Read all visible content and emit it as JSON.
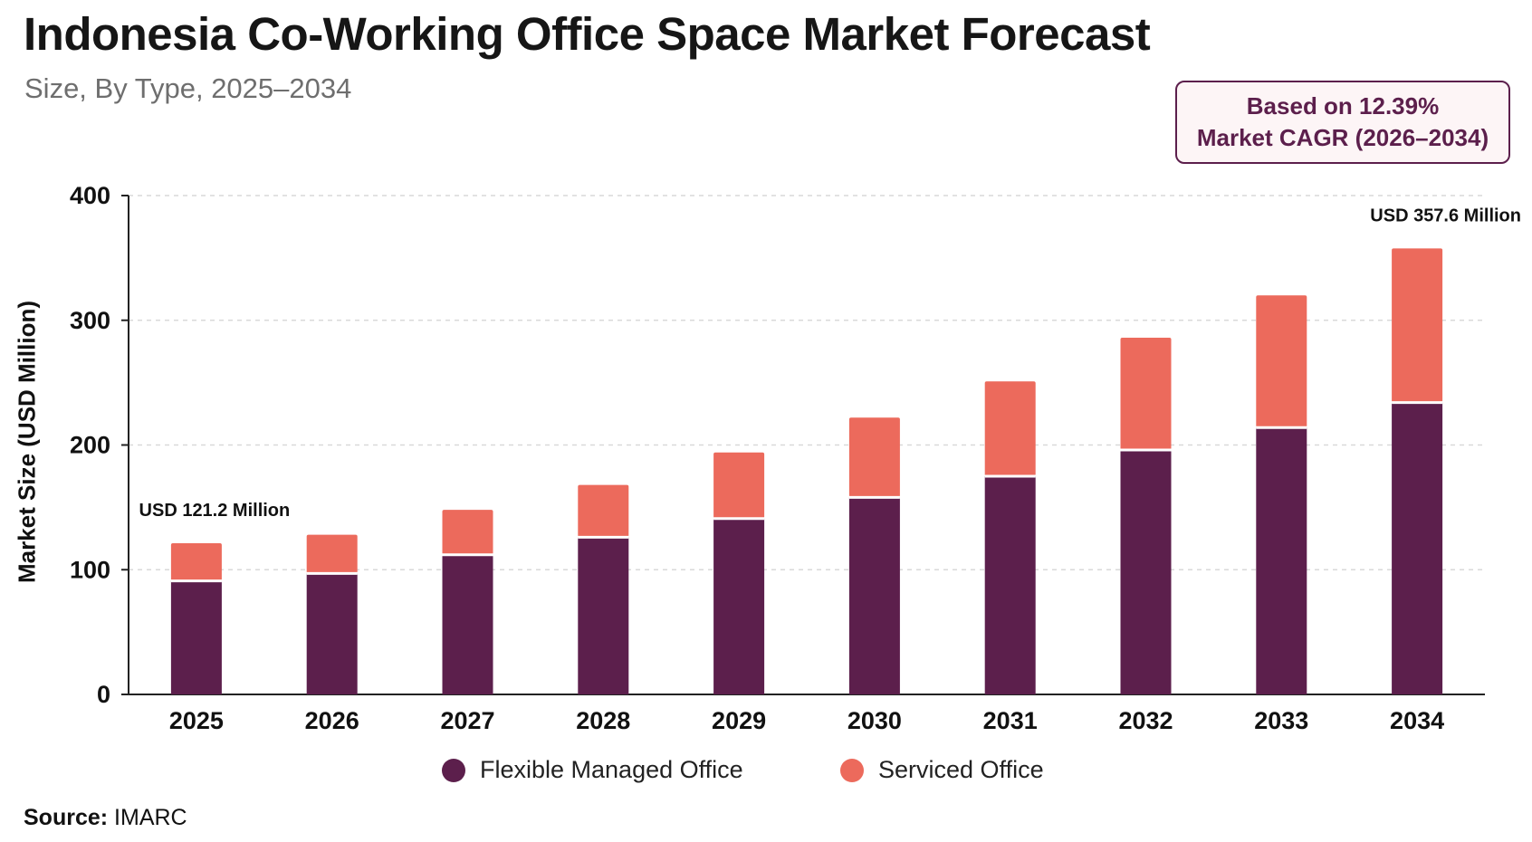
{
  "header": {
    "title": "Indonesia Co-Working Office Space Market Forecast",
    "subtitle": "Size, By Type, 2025–2034"
  },
  "cagr_box": {
    "line1": "Based on 12.39%",
    "line2": "Market CAGR (2026–2034)"
  },
  "source": {
    "label": "Source:",
    "value": "IMARC"
  },
  "colors": {
    "flexible": "#5c1f4c",
    "serviced": "#ec6a5c",
    "grid": "#d9d9d9",
    "axis": "#222222"
  },
  "chart_data": {
    "type": "bar",
    "stacked": true,
    "categories": [
      "2025",
      "2026",
      "2027",
      "2028",
      "2029",
      "2030",
      "2031",
      "2032",
      "2033",
      "2034"
    ],
    "series": [
      {
        "name": "Flexible Managed Office",
        "values": [
          91,
          97,
          112,
          126,
          141,
          158,
          175,
          196,
          214,
          234
        ]
      },
      {
        "name": "Serviced Office",
        "values": [
          30.2,
          31,
          36,
          42,
          53,
          64,
          76,
          90,
          106,
          123.6
        ]
      }
    ],
    "annotations": [
      {
        "category": "2025",
        "text": "USD 121.2 Million"
      },
      {
        "category": "2034",
        "text": "USD 357.6 Million"
      }
    ],
    "ylabel": "Market Size (USD Million)",
    "xlabel": "",
    "ylim": [
      0,
      400
    ],
    "yticks": [
      0,
      100,
      200,
      300,
      400
    ],
    "grid": true,
    "legend_position": "bottom"
  }
}
